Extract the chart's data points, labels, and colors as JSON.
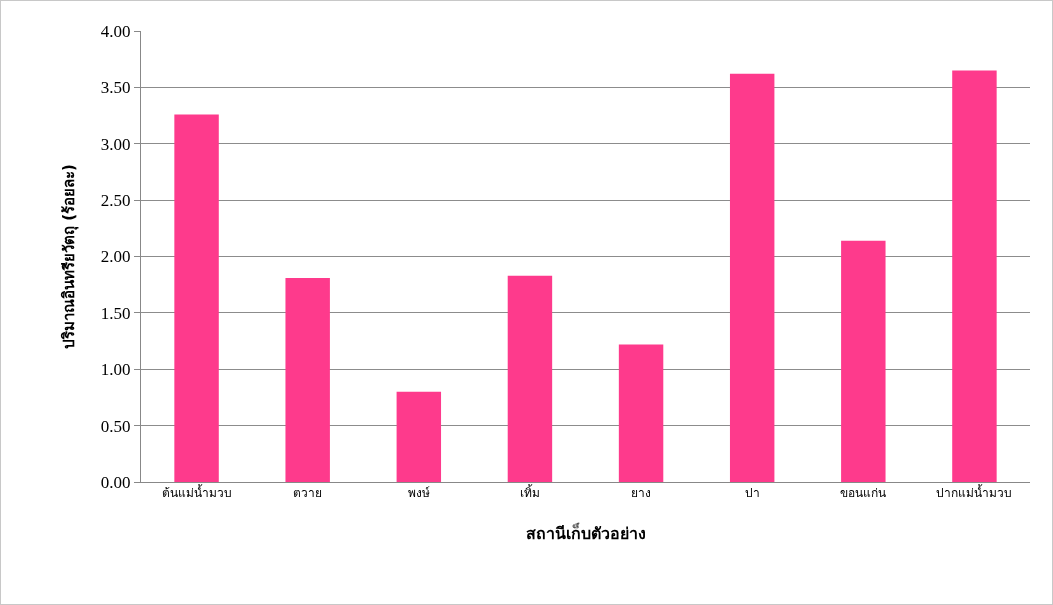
{
  "chart_data": {
    "type": "bar",
    "xlabel": "สถานีเก็บตัวอย่าง",
    "ylabel": "ปริมาณอินทรียวัตถุ (ร้อยละ)",
    "categories": [
      "ต้นแม่น้ำมวบ",
      "ตวาย",
      "พงษ์",
      "เทิ้ม",
      "ยาง",
      "ปา",
      "ขอนแก่น",
      "ปากแม่น้ำมวบ"
    ],
    "values": [
      3.26,
      1.81,
      0.8,
      1.83,
      1.22,
      3.62,
      2.14,
      3.65
    ],
    "color": "#fe3a8c",
    "ylim": [
      0,
      4
    ],
    "yticks": [
      {
        "value": 0,
        "label": "0.00"
      },
      {
        "value": 0.5,
        "label": "0.50"
      },
      {
        "value": 1,
        "label": "1.00"
      },
      {
        "value": 1.5,
        "label": "1.50"
      },
      {
        "value": 2,
        "label": "2.00"
      },
      {
        "value": 2.5,
        "label": "2.50"
      },
      {
        "value": 3,
        "label": "3.00"
      },
      {
        "value": 3.5,
        "label": "3.50"
      },
      {
        "value": 4,
        "label": "4.00"
      }
    ],
    "grid": "y"
  }
}
